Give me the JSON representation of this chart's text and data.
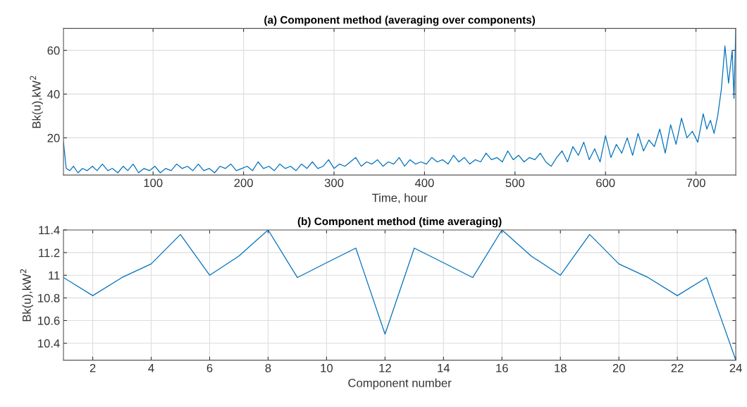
{
  "chart_data": [
    {
      "type": "line",
      "title": "(a) Component method (averaging over components)",
      "xlabel": "Time, hour",
      "ylabel": "Bk(u),kW$^{2}$",
      "x": [
        1,
        4,
        8,
        12,
        17,
        22,
        27,
        33,
        38,
        44,
        50,
        55,
        61,
        67,
        72,
        78,
        84,
        90,
        96,
        102,
        108,
        114,
        120,
        126,
        132,
        138,
        144,
        150,
        156,
        162,
        168,
        174,
        180,
        186,
        192,
        198,
        204,
        210,
        216,
        222,
        228,
        234,
        240,
        246,
        252,
        258,
        264,
        270,
        276,
        282,
        288,
        294,
        300,
        306,
        312,
        318,
        324,
        330,
        336,
        342,
        348,
        354,
        360,
        366,
        372,
        378,
        384,
        390,
        396,
        402,
        408,
        414,
        420,
        426,
        432,
        438,
        444,
        450,
        456,
        462,
        468,
        474,
        480,
        486,
        492,
        498,
        504,
        510,
        516,
        522,
        528,
        534,
        540,
        546,
        552,
        558,
        564,
        570,
        576,
        582,
        588,
        594,
        600,
        606,
        612,
        618,
        624,
        630,
        636,
        642,
        648,
        654,
        660,
        666,
        672,
        678,
        684,
        690,
        696,
        702,
        708,
        712,
        716,
        720,
        724,
        728,
        732,
        736,
        740,
        742,
        744
      ],
      "series": [
        {
          "color": "#0072bd",
          "values": [
            18,
            6,
            5,
            7,
            4,
            6,
            5,
            7,
            5,
            8,
            5,
            6,
            4,
            7,
            5,
            8,
            4,
            6,
            5,
            7,
            4,
            6,
            5,
            8,
            6,
            7,
            5,
            8,
            5,
            6,
            4,
            7,
            6,
            8,
            5,
            6,
            7,
            5,
            9,
            6,
            7,
            5,
            8,
            6,
            7,
            5,
            8,
            6,
            9,
            6,
            7,
            10,
            6,
            8,
            7,
            9,
            11,
            7,
            9,
            8,
            10,
            7,
            9,
            8,
            11,
            7,
            10,
            8,
            9,
            8,
            11,
            9,
            10,
            8,
            12,
            9,
            11,
            8,
            10,
            9,
            13,
            10,
            11,
            9,
            14,
            10,
            12,
            9,
            11,
            10,
            13,
            9,
            7,
            11,
            14,
            9,
            16,
            12,
            18,
            10,
            15,
            9,
            21,
            11,
            17,
            13,
            20,
            12,
            22,
            14,
            19,
            16,
            24,
            13,
            26,
            17,
            29,
            20,
            23,
            18,
            31,
            24,
            28,
            22,
            30,
            42,
            62,
            45,
            60,
            38,
            70
          ]
        }
      ],
      "xlim": [
        1,
        744
      ],
      "ylim": [
        3,
        70
      ],
      "xticks": [
        100,
        200,
        300,
        400,
        500,
        600,
        700
      ],
      "yticks": [
        20,
        40,
        60
      ],
      "grid": true
    },
    {
      "type": "line",
      "title": "(b) Component method (time averaging)",
      "xlabel": "Component number",
      "ylabel": "Bk(u),kW$^{2}$",
      "x": [
        1,
        2,
        3,
        4,
        5,
        6,
        7,
        8,
        9,
        10,
        11,
        12,
        13,
        14,
        15,
        16,
        17,
        18,
        19,
        20,
        21,
        22,
        23,
        24
      ],
      "series": [
        {
          "color": "#0072bd",
          "values": [
            10.98,
            10.82,
            10.98,
            11.1,
            11.36,
            11.0,
            11.17,
            11.4,
            10.98,
            11.11,
            11.24,
            10.48,
            11.24,
            11.11,
            10.98,
            11.4,
            11.17,
            11.0,
            11.36,
            11.1,
            10.98,
            10.82,
            10.98,
            10.25
          ]
        }
      ],
      "xlim": [
        1,
        24
      ],
      "ylim": [
        10.25,
        11.4
      ],
      "xticks": [
        2,
        4,
        6,
        8,
        10,
        12,
        14,
        16,
        18,
        20,
        22,
        24
      ],
      "yticks": [
        10.4,
        10.6,
        10.8,
        11,
        11.2,
        11.4
      ],
      "grid": true
    }
  ]
}
